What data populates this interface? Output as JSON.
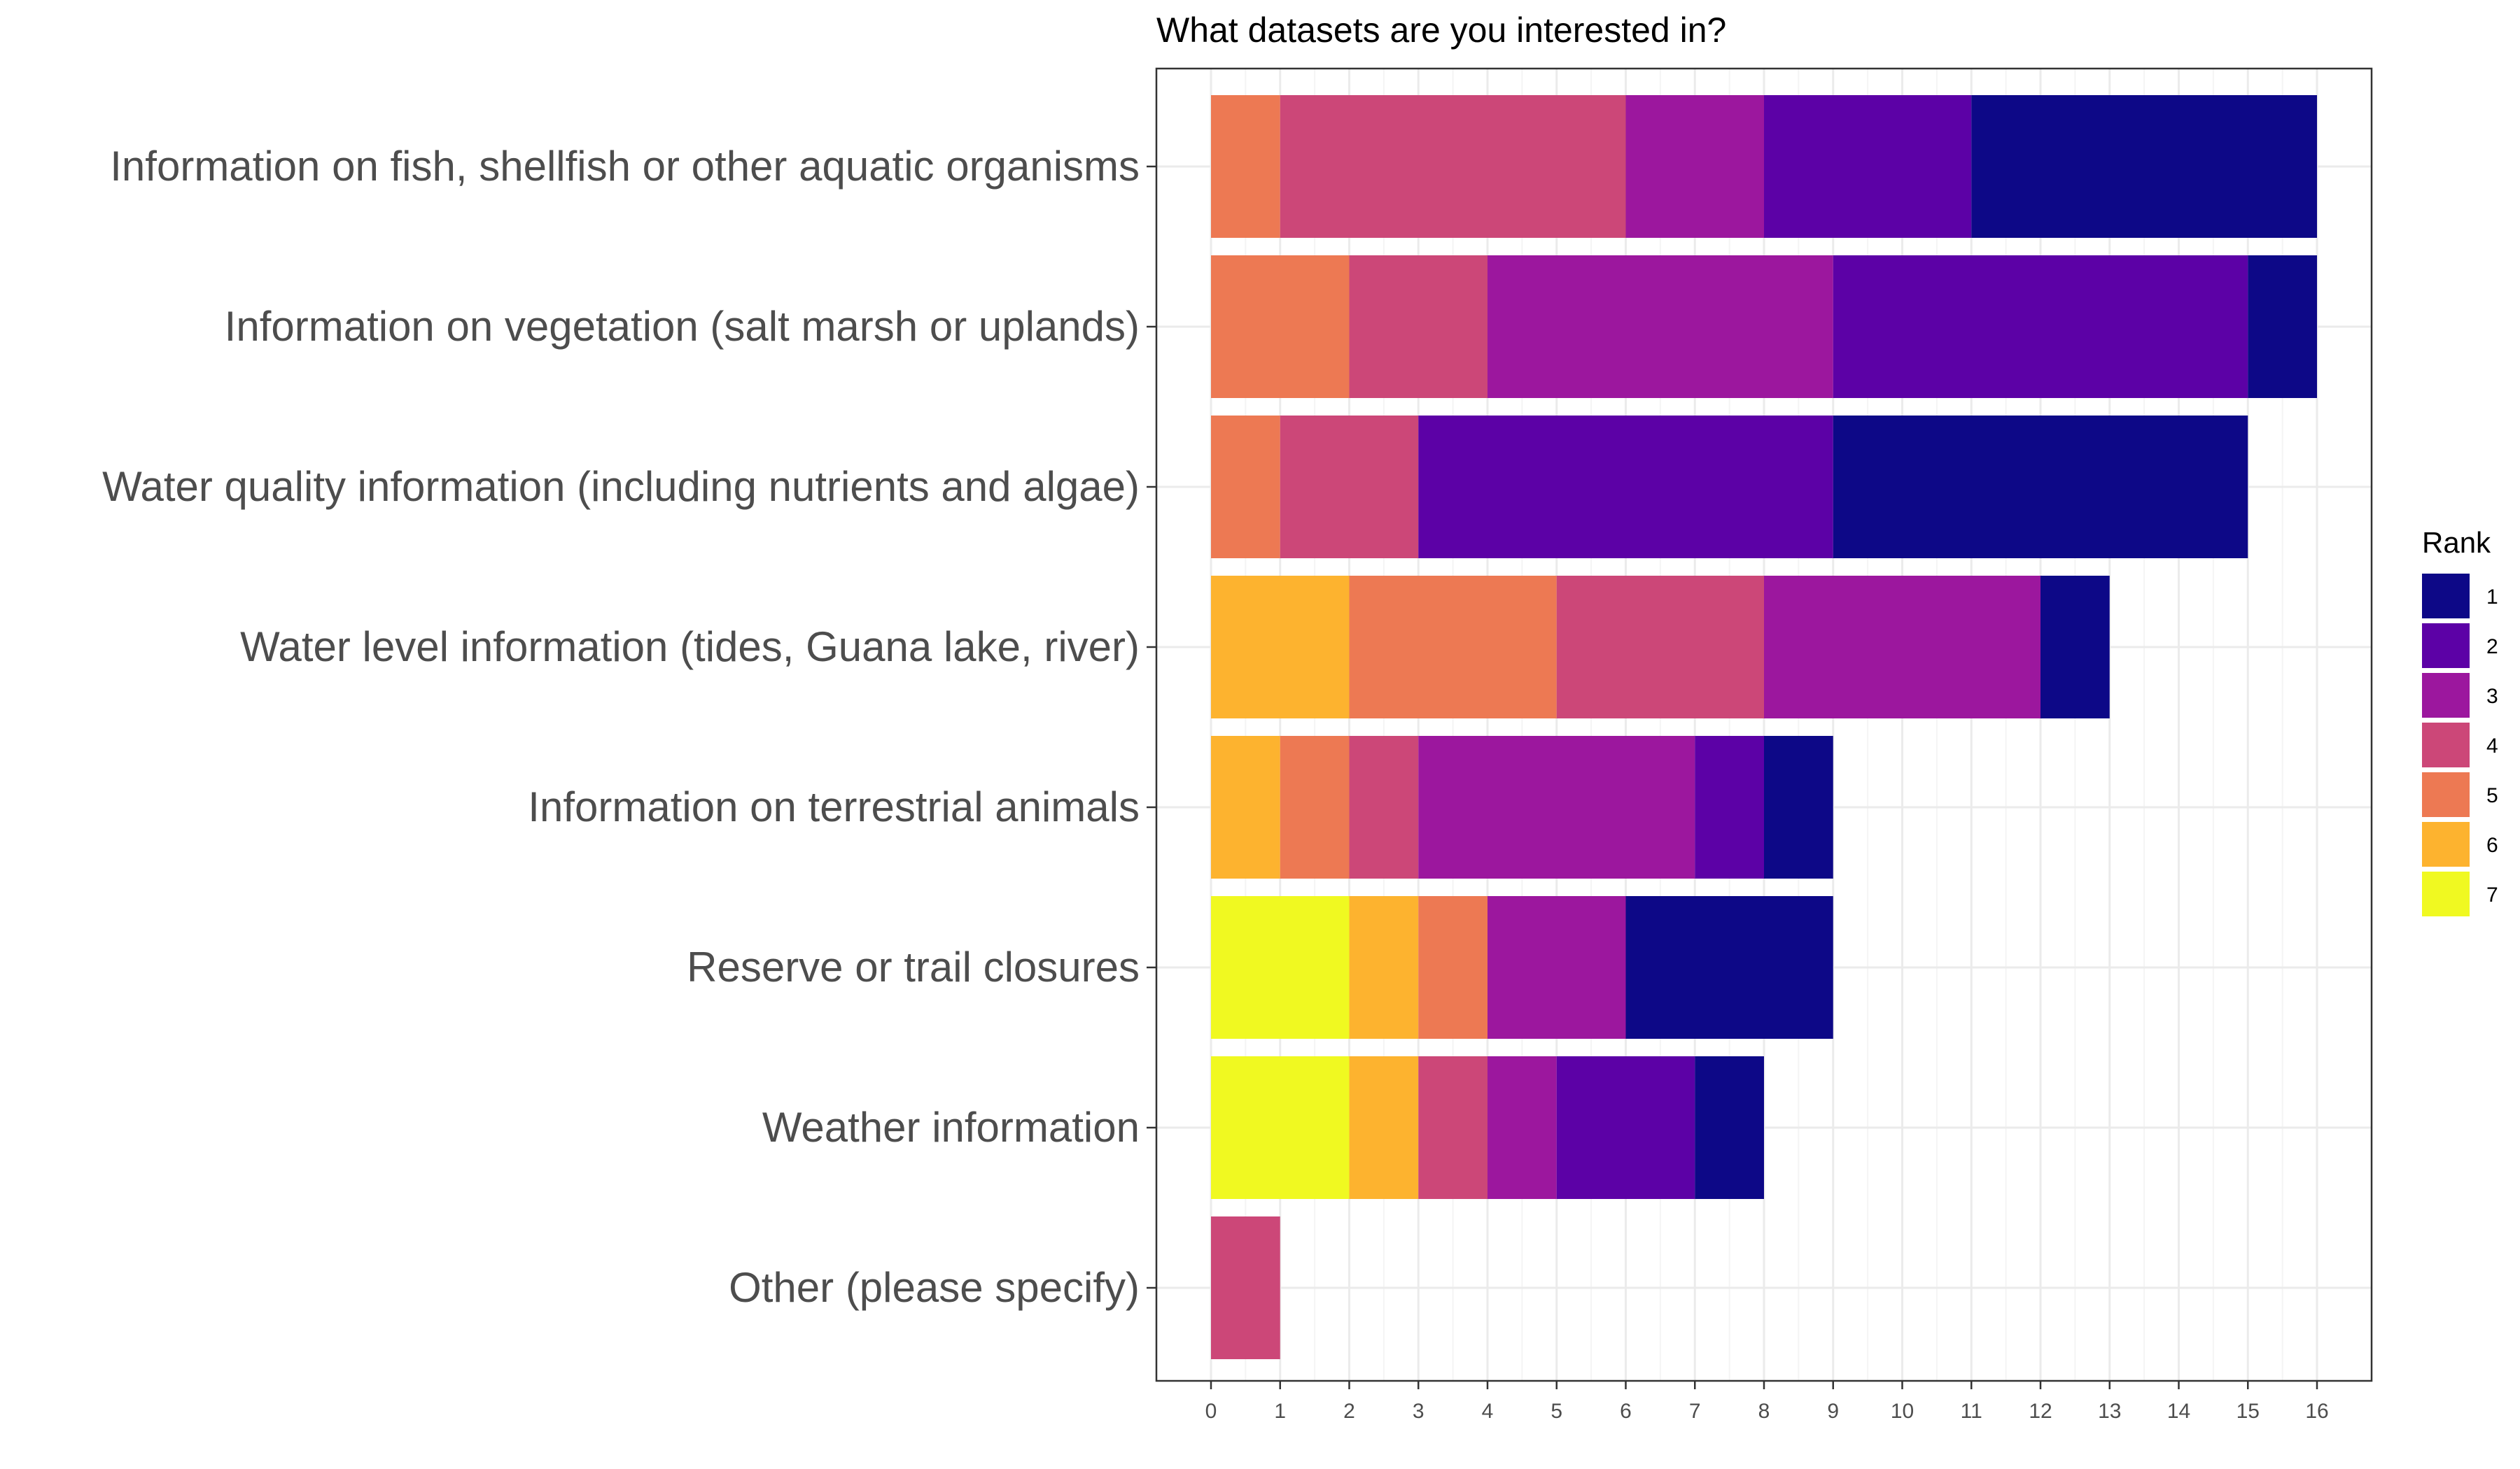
{
  "chart_data": {
    "type": "bar",
    "orientation": "horizontal",
    "stacked": true,
    "title": "What datasets are you interested in?",
    "xlabel": "",
    "ylabel": "",
    "xlim": [
      0,
      16
    ],
    "xticks": [
      "0",
      "1",
      "2",
      "3",
      "4",
      "5",
      "6",
      "7",
      "8",
      "9",
      "10",
      "11",
      "12",
      "13",
      "14",
      "15",
      "16"
    ],
    "grid": true,
    "legend": {
      "title": "Rank",
      "position": "right"
    },
    "categories": [
      "Information on fish, shellfish or other aquatic organisms",
      "Information on vegetation (salt marsh or uplands)",
      "Water quality information (including nutrients and algae)",
      "Water level information (tides, Guana lake, river)",
      "Information on terrestrial animals",
      "Reserve or trail closures",
      "Weather information",
      "Other (please specify)"
    ],
    "stack_order": [
      "7",
      "6",
      "5",
      "4",
      "3",
      "2",
      "1"
    ],
    "series": [
      {
        "name": "1",
        "color": "#0d0887",
        "values": [
          5,
          1,
          6,
          1,
          1,
          3,
          1,
          0
        ]
      },
      {
        "name": "2",
        "color": "#5c01a6",
        "values": [
          3,
          6,
          6,
          0,
          1,
          0,
          2,
          0
        ]
      },
      {
        "name": "3",
        "color": "#9c179e",
        "values": [
          2,
          5,
          0,
          4,
          4,
          2,
          1,
          0
        ]
      },
      {
        "name": "4",
        "color": "#cc4778",
        "values": [
          5,
          2,
          2,
          3,
          1,
          0,
          1,
          1
        ]
      },
      {
        "name": "5",
        "color": "#ed7953",
        "values": [
          1,
          2,
          1,
          3,
          1,
          1,
          0,
          0
        ]
      },
      {
        "name": "6",
        "color": "#fdb32f",
        "values": [
          0,
          0,
          0,
          2,
          1,
          1,
          1,
          0
        ]
      },
      {
        "name": "7",
        "color": "#f0f921",
        "values": [
          0,
          0,
          0,
          0,
          0,
          2,
          2,
          0
        ]
      }
    ]
  }
}
